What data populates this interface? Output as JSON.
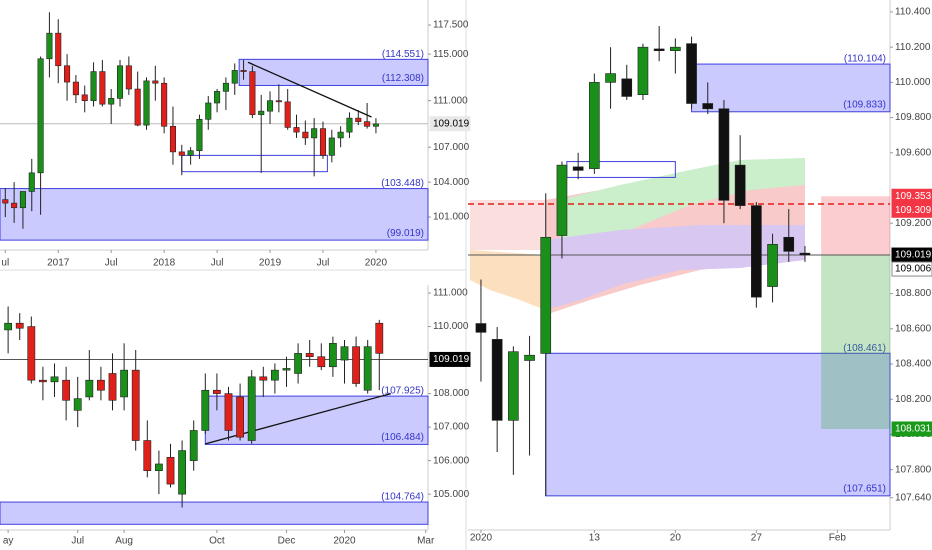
{
  "chart_data": [
    {
      "type": "candlestick",
      "up_color": "#1a8f1a",
      "down_color": "#e0201b",
      "x": [
        0,
        1,
        2,
        3,
        4,
        5,
        6,
        7,
        8,
        9,
        10,
        11,
        12,
        13,
        14,
        15,
        16,
        17,
        18,
        19,
        20,
        21,
        22,
        23,
        24,
        25,
        26,
        27,
        28,
        29,
        30,
        31,
        32,
        33,
        34,
        35,
        36,
        37,
        38,
        39,
        40,
        41,
        42
      ],
      "open": [
        102.5,
        102.2,
        101.8,
        103.2,
        104.8,
        114.6,
        116.8,
        114.0,
        112.6,
        111.5,
        111.0,
        113.5,
        110.7,
        111.2,
        114.0,
        112.0,
        108.9,
        112.7,
        112.5,
        108.8,
        106.6,
        106.3,
        106.7,
        109.4,
        110.8,
        111.8,
        112.5,
        113.6,
        113.5,
        109.8,
        110.1,
        111.0,
        110.9,
        108.7,
        108.3,
        107.8,
        108.6,
        106.3,
        107.8,
        108.3,
        109.5,
        109.2,
        108.8
      ],
      "high": [
        103.5,
        104.0,
        103.0,
        106.0,
        114.8,
        118.6,
        118.0,
        115.0,
        113.2,
        112.3,
        114.3,
        114.5,
        112.0,
        114.5,
        114.8,
        113.5,
        113.0,
        114.0,
        113.0,
        110.5,
        107.2,
        107.0,
        109.8,
        111.4,
        112.0,
        113.0,
        114.2,
        114.5,
        114.0,
        111.5,
        111.8,
        112.4,
        112.0,
        109.8,
        109.3,
        109.5,
        109.2,
        108.5,
        108.8,
        110.0,
        110.2,
        110.8,
        109.5
      ],
      "low": [
        101.0,
        100.5,
        100.0,
        101.5,
        101.2,
        113.0,
        112.5,
        111.0,
        110.8,
        110.0,
        110.5,
        110.5,
        109.0,
        110.5,
        111.5,
        108.8,
        108.5,
        111.0,
        108.2,
        105.5,
        104.6,
        105.5,
        106.0,
        108.5,
        110.0,
        110.2,
        111.5,
        112.8,
        109.5,
        104.8,
        109.0,
        110.0,
        108.5,
        107.8,
        107.2,
        104.5,
        106.0,
        105.7,
        107.0,
        107.8,
        108.9,
        108.6,
        108.2
      ],
      "close": [
        102.2,
        101.8,
        103.2,
        104.8,
        114.6,
        116.8,
        114.0,
        112.6,
        111.5,
        111.0,
        113.5,
        110.7,
        111.2,
        114.0,
        112.0,
        108.9,
        112.7,
        112.5,
        108.8,
        106.6,
        106.3,
        106.7,
        109.4,
        110.8,
        111.8,
        112.5,
        113.6,
        113.5,
        109.8,
        110.1,
        111.0,
        110.9,
        108.7,
        108.3,
        107.8,
        108.6,
        106.3,
        107.8,
        108.3,
        109.5,
        109.2,
        108.8,
        109.0
      ],
      "xlim": [
        -0.6,
        47.9
      ],
      "ylim": [
        98.17,
        119.65
      ],
      "xticks": [
        {
          "value": 0,
          "label": "ul"
        },
        {
          "value": 6,
          "label": "2017"
        },
        {
          "value": 12,
          "label": "Jul"
        },
        {
          "value": 18,
          "label": "2018"
        },
        {
          "value": 24,
          "label": "Jul"
        },
        {
          "value": 30,
          "label": "2019"
        },
        {
          "value": 36,
          "label": "Jul"
        },
        {
          "value": 42,
          "label": "2020"
        }
      ],
      "yticks": [
        {
          "value": 117.5,
          "label": "117.500"
        },
        {
          "value": 115,
          "label": "115.000"
        },
        {
          "value": 111,
          "label": "111.000"
        },
        {
          "value": 107,
          "label": "107.000"
        },
        {
          "value": 104,
          "label": "104.000"
        },
        {
          "value": 101,
          "label": "101.000"
        }
      ],
      "zones": [
        {
          "top": {
            "value": 103.448,
            "label": "(103.448)"
          },
          "bottom": {
            "value": 99.019,
            "label": "(99.019)"
          },
          "x0": -0.6,
          "x1": 47.9,
          "filled": true
        },
        {
          "top": {
            "value": 114.551,
            "label": "(114.551)"
          },
          "bottom": {
            "value": 112.308,
            "label": "(112.308)"
          },
          "x0": 26.5,
          "x1": 47.9,
          "filled": true
        },
        {
          "top": 106.3,
          "bottom": 104.9,
          "x0": 20,
          "x1": 36.5,
          "filled": false
        }
      ],
      "trendlines": [
        {
          "x": [
            27.5,
            41.5
          ],
          "y": [
            114.3,
            109.6
          ]
        }
      ],
      "tags": [
        {
          "value": 109.019,
          "bg": "#e8e8e8",
          "fg": "#000",
          "line": "#bbb"
        }
      ]
    },
    {
      "type": "candlestick",
      "up_color": "#1a8f1a",
      "down_color": "#e0201b",
      "x": [
        0,
        1,
        2,
        3,
        4,
        5,
        6,
        7,
        8,
        9,
        10,
        11,
        12,
        13,
        14,
        15,
        16,
        17,
        18,
        19,
        20,
        21,
        22,
        23,
        24,
        25,
        26,
        27,
        28,
        29,
        30,
        31,
        32
      ],
      "open": [
        109.9,
        110.1,
        110.0,
        108.4,
        108.35,
        108.4,
        107.5,
        107.9,
        108.4,
        108.6,
        107.9,
        108.7,
        106.6,
        105.7,
        106.1,
        105.0,
        106.0,
        106.9,
        108.1,
        108.0,
        107.9,
        106.6,
        108.5,
        108.4,
        108.7,
        108.6,
        109.2,
        109.1,
        108.8,
        109.0,
        109.4,
        108.1,
        110.1
      ],
      "high": [
        110.6,
        110.4,
        110.3,
        108.8,
        108.9,
        108.8,
        108.5,
        109.3,
        108.8,
        109.2,
        109.5,
        109.3,
        107.2,
        106.3,
        106.5,
        106.6,
        107.2,
        108.6,
        108.6,
        108.2,
        108.3,
        108.7,
        108.8,
        108.9,
        109.1,
        109.5,
        109.6,
        109.5,
        109.7,
        109.6,
        109.7,
        109.6,
        110.2
      ],
      "low": [
        109.2,
        109.6,
        108.3,
        107.8,
        107.9,
        107.2,
        107.0,
        107.8,
        107.8,
        107.5,
        107.5,
        106.3,
        105.5,
        105.0,
        105.2,
        104.6,
        105.7,
        106.8,
        107.5,
        106.6,
        106.6,
        106.5,
        107.9,
        108.0,
        108.2,
        108.3,
        108.8,
        108.7,
        108.5,
        108.3,
        108.2,
        108.0,
        108.1
      ],
      "close": [
        110.1,
        109.95,
        108.4,
        108.35,
        108.5,
        107.8,
        107.85,
        108.4,
        108.1,
        107.8,
        108.7,
        106.6,
        105.7,
        105.9,
        105.3,
        106.3,
        106.9,
        108.1,
        108.0,
        106.9,
        106.7,
        108.5,
        108.4,
        108.7,
        108.75,
        109.2,
        109.1,
        108.8,
        109.5,
        109.4,
        108.3,
        109.4,
        109.2
      ],
      "xlim": [
        -0.7,
        36.2
      ],
      "ylim": [
        103.93,
        111.24
      ],
      "xticks": [
        {
          "value": 0,
          "label": "ay"
        },
        {
          "value": 6,
          "label": "Jul"
        },
        {
          "value": 10,
          "label": "Aug"
        },
        {
          "value": 18,
          "label": "Oct"
        },
        {
          "value": 24,
          "label": "Dec"
        },
        {
          "value": 29,
          "label": "2020"
        },
        {
          "value": 36,
          "label": "Mar"
        }
      ],
      "yticks": [
        {
          "value": 111,
          "label": "111.000"
        },
        {
          "value": 110,
          "label": "110.000"
        },
        {
          "value": 108,
          "label": "108.000"
        },
        {
          "value": 107,
          "label": "107.000"
        },
        {
          "value": 106,
          "label": "106.000"
        },
        {
          "value": 105,
          "label": "105.000"
        }
      ],
      "zones": [
        {
          "top": {
            "value": 107.925,
            "label": "(107.925)"
          },
          "bottom": {
            "value": 106.484,
            "label": "(106.484)"
          },
          "x0": 17,
          "x1": 36.2,
          "filled": true
        },
        {
          "top": {
            "value": 104.764,
            "label": "(104.764)"
          },
          "bottom": 104.1,
          "x0": -0.7,
          "x1": 36.2,
          "filled": true
        }
      ],
      "trendlines": [
        {
          "x": [
            17,
            33
          ],
          "y": [
            106.5,
            108.0
          ]
        }
      ],
      "tags": [
        {
          "value": 109.019,
          "bg": "#000",
          "fg": "#fff",
          "line": "#555"
        }
      ]
    },
    {
      "type": "candlestick",
      "up_color": "#1a8f1a",
      "down_color": "#111111",
      "x": [
        0,
        1,
        2,
        3,
        4,
        5,
        6,
        7,
        8,
        9,
        10,
        11,
        12,
        13,
        14,
        15,
        16,
        17,
        18,
        19,
        20
      ],
      "open": [
        108.63,
        108.54,
        108.08,
        108.42,
        108.46,
        109.13,
        109.52,
        109.51,
        110.0,
        110.02,
        109.93,
        110.19,
        110.18,
        110.22,
        109.88,
        109.85,
        109.53,
        109.3,
        108.84,
        109.12,
        109.03
      ],
      "high": [
        108.88,
        108.61,
        108.5,
        108.56,
        109.37,
        109.55,
        109.6,
        110.05,
        110.2,
        110.1,
        110.22,
        110.32,
        110.25,
        110.26,
        110.0,
        109.9,
        109.7,
        109.32,
        109.14,
        109.28,
        109.07
      ],
      "low": [
        108.3,
        107.9,
        107.77,
        107.88,
        107.65,
        109.0,
        109.45,
        109.48,
        109.85,
        109.9,
        109.9,
        110.12,
        110.05,
        109.85,
        109.82,
        109.2,
        109.28,
        108.72,
        108.75,
        108.98,
        108.98
      ],
      "close": [
        108.58,
        108.08,
        108.47,
        108.45,
        109.12,
        109.53,
        109.5,
        110.0,
        110.05,
        109.92,
        110.2,
        110.18,
        110.2,
        109.88,
        109.85,
        109.33,
        109.3,
        108.78,
        109.08,
        109.04,
        109.02
      ],
      "xlim": [
        -0.8,
        25.25
      ],
      "ylim": [
        107.457,
        110.468
      ],
      "xticks": [
        {
          "value": 0,
          "label": "2020"
        },
        {
          "value": 7,
          "label": "13"
        },
        {
          "value": 12,
          "label": "20"
        },
        {
          "value": 17,
          "label": "27"
        },
        {
          "value": 22,
          "label": "Feb"
        }
      ],
      "yticks": [
        {
          "value": 110.4,
          "label": "110.400"
        },
        {
          "value": 110.2,
          "label": "110.200"
        },
        {
          "value": 110,
          "label": "110.000"
        },
        {
          "value": 109.8,
          "label": "109.800"
        },
        {
          "value": 109.6,
          "label": "109.600"
        },
        {
          "value": 109.2,
          "label": "109.200"
        },
        {
          "value": 108.8,
          "label": "108.800"
        },
        {
          "value": 108.6,
          "label": "108.600"
        },
        {
          "value": 108.4,
          "label": "108.400"
        },
        {
          "value": 108.2,
          "label": "108.200"
        },
        {
          "value": 108,
          "label": "108.000"
        },
        {
          "value": 107.8,
          "label": "107.800"
        },
        {
          "value": 107.64,
          "label": "107.640"
        }
      ],
      "zones": [
        {
          "top": {
            "value": 110.104,
            "label": "(110.104)"
          },
          "bottom": {
            "value": 109.833,
            "label": "(109.833)"
          },
          "x0": 13,
          "x1": 25.25,
          "filled": true
        },
        {
          "top": {
            "value": 108.461,
            "label": "(108.461)"
          },
          "bottom": {
            "value": 107.651,
            "label": "(107.651)"
          },
          "x0": 4,
          "x1": 25.25,
          "filled": true
        },
        {
          "top": 109.55,
          "bottom": 109.46,
          "x0": 5.3,
          "x1": 12,
          "filled": false
        }
      ],
      "trendlines": [],
      "positions": [
        {
          "x0": 21,
          "x1": 25.25,
          "entry": 109.019,
          "stop": 109.353,
          "target": 108.031
        }
      ],
      "tags": [
        {
          "value": 109.353,
          "bg": "#f23645",
          "fg": "#fff"
        },
        {
          "value": 109.309,
          "bg": "#f23645",
          "fg": "#fff",
          "line": "#e0201b",
          "dash": true
        },
        {
          "value": 109.019,
          "bg": "#000",
          "fg": "#fff",
          "line": "#555"
        },
        {
          "value": 109.006,
          "bg": "#fff",
          "fg": "#000"
        },
        {
          "value": 108.031,
          "bg": "#1a9a1a",
          "fg": "#fff"
        }
      ]
    }
  ]
}
